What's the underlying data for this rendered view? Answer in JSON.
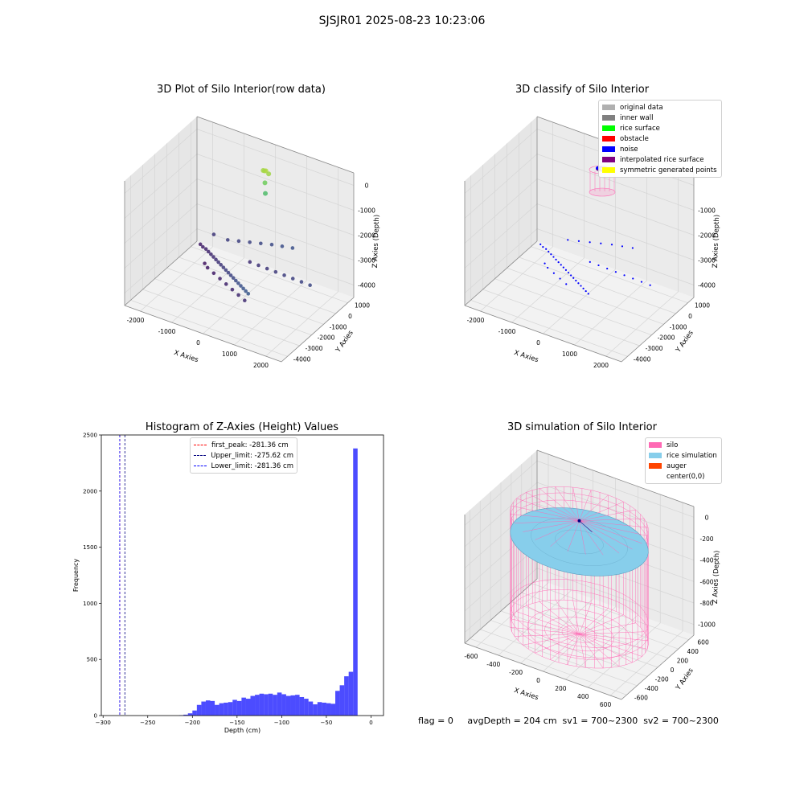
{
  "suptitle": "SJSJR01 2025-08-23 10:23:06",
  "status_text": "flag = 0     avgDepth = 204 cm  sv1 = 700~2300  sv2 = 700~2300",
  "chart_data": [
    {
      "type": "scatter",
      "title": "3D Plot of Silo Interior(row data)",
      "xlabel": "X Axies",
      "ylabel": "Y Axies",
      "zlabel": "Z Axies (Depth)",
      "x_ticks": [
        "-2000",
        "-1000",
        "0",
        "1000",
        "2000"
      ],
      "y_ticks": [
        "1000",
        "0",
        "-1000",
        "-2000",
        "-3000",
        "-4000"
      ],
      "z_ticks": [
        "0",
        "-1000",
        "-2000",
        "-3000",
        "-4000"
      ],
      "xlim": [
        -2400,
        2400
      ],
      "ylim": [
        -4400,
        1600
      ],
      "zlim": [
        -4600,
        300
      ],
      "colormap": [
        "#440154",
        "#3b528b",
        "#21918c",
        "#5ec962",
        "#fde725"
      ],
      "points": [
        [
          -2000,
          800,
          -4200
        ],
        [
          -1850,
          600,
          -4150
        ],
        [
          -1700,
          450,
          -4100
        ],
        [
          -1550,
          250,
          -4050
        ],
        [
          -1400,
          50,
          -4000
        ],
        [
          -1250,
          -150,
          -3950
        ],
        [
          -1100,
          -350,
          -3900
        ],
        [
          -950,
          -550,
          -3850
        ],
        [
          -800,
          -750,
          -3800
        ],
        [
          -650,
          -950,
          -3750
        ],
        [
          -500,
          -1150,
          -3700
        ],
        [
          -350,
          -1350,
          -3650
        ],
        [
          -200,
          -1550,
          -3600
        ],
        [
          -50,
          -1750,
          -3550
        ],
        [
          100,
          -1950,
          -3500
        ],
        [
          250,
          -2150,
          -3450
        ],
        [
          400,
          -2350,
          -3400
        ],
        [
          550,
          -2550,
          -3350
        ],
        [
          700,
          -2750,
          -3300
        ],
        [
          850,
          -2950,
          -3250
        ],
        [
          -300,
          300,
          -3900
        ],
        [
          0,
          200,
          -3850
        ],
        [
          300,
          100,
          -3800
        ],
        [
          600,
          0,
          -3750
        ],
        [
          900,
          -100,
          -3700
        ],
        [
          1200,
          -200,
          -3650
        ],
        [
          1500,
          -300,
          -3600
        ],
        [
          1800,
          -400,
          -3550
        ],
        [
          -1200,
          900,
          -3700
        ],
        [
          -900,
          1000,
          -3650
        ],
        [
          -600,
          1100,
          -3600
        ],
        [
          -300,
          1200,
          -3550
        ],
        [
          0,
          1300,
          -3500
        ],
        [
          300,
          1350,
          -3450
        ],
        [
          600,
          1400,
          -3400
        ],
        [
          -1700,
          1100,
          -3800
        ],
        [
          -1500,
          -200,
          -4300
        ],
        [
          -1300,
          -500,
          -4250
        ],
        [
          -1000,
          -800,
          -4200
        ],
        [
          -700,
          -1100,
          -4150
        ],
        [
          -400,
          -1400,
          -4100
        ],
        [
          -100,
          -1700,
          -4050
        ],
        [
          200,
          -2000,
          -4000
        ],
        [
          500,
          -2300,
          -3950
        ],
        [
          0,
          700,
          -350
        ],
        [
          60,
          650,
          -300
        ],
        [
          -60,
          750,
          -380
        ],
        [
          120,
          720,
          -420
        ],
        [
          20,
          680,
          -800
        ],
        [
          40,
          660,
          -1200
        ]
      ]
    },
    {
      "type": "scatter",
      "title": "3D classify of Silo Interior",
      "xlabel": "X Axies",
      "ylabel": "Y Axies",
      "zlabel": "Z Axies (Depth)",
      "x_ticks": [
        "-2000",
        "-1000",
        "0",
        "1000",
        "2000"
      ],
      "y_ticks": [
        "1000",
        "0",
        "-1000",
        "-2000",
        "-3000",
        "-4000"
      ],
      "z_ticks": [
        "-1000",
        "-2000",
        "-3000",
        "-4000"
      ],
      "xlim": [
        -2400,
        2400
      ],
      "ylim": [
        -4400,
        1600
      ],
      "zlim": [
        -4600,
        300
      ],
      "legend": [
        {
          "label": "original data",
          "color": "#b0b0b0"
        },
        {
          "label": "inner wall",
          "color": "#808080"
        },
        {
          "label": "rice surface",
          "color": "#00ff00"
        },
        {
          "label": "obstacle",
          "color": "#ff0000"
        },
        {
          "label": "noise",
          "color": "#0000ff"
        },
        {
          "label": "interpolated rice surface",
          "color": "#800080"
        },
        {
          "label": "symmetric generated points",
          "color": "#ffff00"
        }
      ],
      "legend_position": "upper right",
      "noise_points": [
        [
          -2000,
          800,
          -4200
        ],
        [
          -1850,
          600,
          -4150
        ],
        [
          -1700,
          450,
          -4100
        ],
        [
          -1550,
          250,
          -4050
        ],
        [
          -1400,
          50,
          -4000
        ],
        [
          -1250,
          -150,
          -3950
        ],
        [
          -1100,
          -350,
          -3900
        ],
        [
          -950,
          -550,
          -3850
        ],
        [
          -800,
          -750,
          -3800
        ],
        [
          -650,
          -950,
          -3750
        ],
        [
          -500,
          -1150,
          -3700
        ],
        [
          -350,
          -1350,
          -3650
        ],
        [
          -200,
          -1550,
          -3600
        ],
        [
          -50,
          -1750,
          -3550
        ],
        [
          100,
          -1950,
          -3500
        ],
        [
          250,
          -2150,
          -3450
        ],
        [
          400,
          -2350,
          -3400
        ],
        [
          550,
          -2550,
          -3350
        ],
        [
          700,
          -2750,
          -3300
        ],
        [
          850,
          -2950,
          -3250
        ],
        [
          -300,
          300,
          -3900
        ],
        [
          0,
          200,
          -3850
        ],
        [
          300,
          100,
          -3800
        ],
        [
          600,
          0,
          -3750
        ],
        [
          900,
          -100,
          -3700
        ],
        [
          1200,
          -200,
          -3650
        ],
        [
          1500,
          -300,
          -3600
        ],
        [
          1800,
          -400,
          -3550
        ],
        [
          -1200,
          900,
          -3700
        ],
        [
          -900,
          1000,
          -3650
        ],
        [
          -600,
          1100,
          -3600
        ],
        [
          -300,
          1200,
          -3550
        ],
        [
          0,
          1300,
          -3500
        ],
        [
          300,
          1350,
          -3450
        ],
        [
          600,
          1400,
          -3400
        ],
        [
          -1500,
          -200,
          -4300
        ],
        [
          -1300,
          -500,
          -4250
        ],
        [
          -1000,
          -800,
          -4200
        ],
        [
          -700,
          -1100,
          -4150
        ],
        [
          -400,
          -1400,
          -4100
        ]
      ]
    },
    {
      "type": "bar",
      "title": "Histogram of Z-Axies (Height) Values",
      "xlabel": "Depth (cm)",
      "ylabel": "Frequency",
      "xlim": [
        -302,
        14
      ],
      "ylim": [
        0,
        2500
      ],
      "x_ticks": [
        -300,
        -250,
        -200,
        -150,
        -100,
        -50,
        0
      ],
      "y_ticks": [
        0,
        500,
        1000,
        1500,
        2000,
        2500
      ],
      "bin_start": -215,
      "bin_width": 5,
      "values": [
        3,
        8,
        20,
        45,
        95,
        125,
        135,
        130,
        95,
        110,
        115,
        120,
        140,
        130,
        160,
        150,
        175,
        185,
        195,
        190,
        195,
        185,
        205,
        190,
        175,
        180,
        185,
        165,
        150,
        125,
        100,
        120,
        115,
        110,
        105,
        220,
        270,
        350,
        390,
        2380
      ],
      "bar_color": "#0000ff",
      "vlines": [
        {
          "x": -281.36,
          "label": "first_peak: -281.36 cm",
          "color": "#ff0000"
        },
        {
          "x": -275.62,
          "label": "Upper_limit: -275.62 cm",
          "color": "#000080"
        },
        {
          "x": -281.36,
          "label": "Lower_limit: -281.36 cm",
          "color": "#0000ff"
        }
      ],
      "legend_position": "upper center"
    },
    {
      "type": "surface",
      "title": "3D simulation of Silo Interior",
      "xlabel": "X Axies",
      "ylabel": "Y Axies",
      "zlabel": "Z Axies (Depth)",
      "x_ticks": [
        "-600",
        "-400",
        "-200",
        "0",
        "200",
        "400",
        "600"
      ],
      "y_ticks": [
        "600",
        "400",
        "200",
        "0",
        "-200",
        "-400",
        "-600"
      ],
      "z_ticks": [
        "0",
        "-200",
        "-400",
        "-600",
        "-800",
        "-1000"
      ],
      "xlim": [
        -700,
        700
      ],
      "ylim": [
        -700,
        700
      ],
      "zlim": [
        -1150,
        100
      ],
      "silo_radius": 560,
      "silo_top": 0,
      "silo_bottom": -1100,
      "rice_surface_depth": -204,
      "legend": [
        {
          "label": "silo",
          "color": "#ff69b4"
        },
        {
          "label": "rice simulation",
          "color": "#87ceeb"
        },
        {
          "label": "auger",
          "color": "#ff4500"
        },
        {
          "label": "center(0,0)",
          "color": "#ffffff"
        }
      ],
      "legend_position": "upper right"
    }
  ]
}
